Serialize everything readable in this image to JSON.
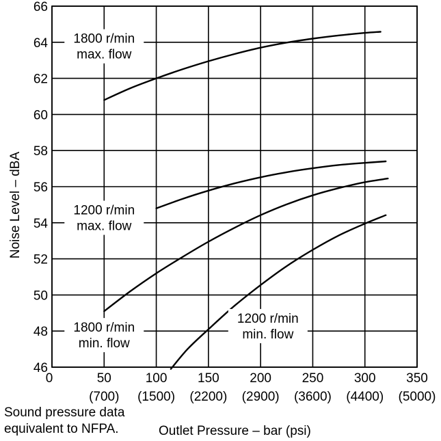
{
  "chart_data": {
    "type": "line",
    "title": "",
    "xlabel": "Outlet Pressure – bar (psi)",
    "ylabel": "Noise Level – dBA",
    "xlim": [
      0,
      350
    ],
    "ylim": [
      46,
      66
    ],
    "grid": true,
    "legend": "none",
    "x_ticks": [
      {
        "value": 0,
        "label": "0",
        "sub": ""
      },
      {
        "value": 50,
        "label": "50",
        "sub": "(700)"
      },
      {
        "value": 100,
        "label": "100",
        "sub": "(1500)"
      },
      {
        "value": 150,
        "label": "150",
        "sub": "(2200)"
      },
      {
        "value": 200,
        "label": "200",
        "sub": "(2900)"
      },
      {
        "value": 250,
        "label": "250",
        "sub": "(3600)"
      },
      {
        "value": 300,
        "label": "300",
        "sub": "(4400)"
      },
      {
        "value": 350,
        "label": "350",
        "sub": "(5000)"
      }
    ],
    "y_ticks": [
      46,
      48,
      50,
      52,
      54,
      56,
      58,
      60,
      62,
      64,
      66
    ],
    "series": [
      {
        "name": "1800 r/min max. flow",
        "x": [
          50,
          75,
          100,
          125,
          150,
          175,
          200,
          225,
          250,
          275,
          300,
          315
        ],
        "y": [
          60.8,
          61.45,
          62.0,
          62.5,
          62.95,
          63.35,
          63.7,
          63.98,
          64.2,
          64.38,
          64.52,
          64.58
        ]
      },
      {
        "name": "1200 r/min max. flow",
        "x": [
          100,
          125,
          150,
          175,
          200,
          225,
          250,
          275,
          300,
          320
        ],
        "y": [
          54.8,
          55.32,
          55.78,
          56.18,
          56.52,
          56.8,
          57.02,
          57.2,
          57.32,
          57.4
        ]
      },
      {
        "name": "1800 r/min min. flow",
        "x": [
          50,
          75,
          100,
          125,
          150,
          175,
          200,
          225,
          250,
          275,
          300,
          322
        ],
        "y": [
          49.1,
          50.2,
          51.2,
          52.1,
          52.95,
          53.72,
          54.42,
          55.02,
          55.52,
          55.92,
          56.25,
          56.45
        ]
      },
      {
        "name": "1200 r/min min. flow",
        "x": [
          114,
          130,
          150,
          175,
          200,
          225,
          250,
          275,
          300,
          320
        ],
        "y": [
          45.9,
          47.0,
          48.1,
          49.4,
          50.55,
          51.6,
          52.5,
          53.3,
          53.95,
          54.42
        ]
      }
    ],
    "annotations": [
      {
        "name": "label-1800-max",
        "lines": [
          "1800 r/min",
          "max. flow"
        ],
        "x": 50,
        "y": 63.7
      },
      {
        "name": "label-1200-max",
        "lines": [
          "1200 r/min",
          "max. flow"
        ],
        "x": 50,
        "y": 54.2
      },
      {
        "name": "label-1800-min",
        "lines": [
          "1800 r/min",
          "min. flow"
        ],
        "x": 50,
        "y": 47.7
      },
      {
        "name": "label-1200-min",
        "lines": [
          "1200 r/min",
          "min. flow"
        ],
        "x": 207,
        "y": 48.2
      }
    ],
    "footnote": [
      "Sound pressure data",
      "equivalent to NFPA."
    ]
  }
}
